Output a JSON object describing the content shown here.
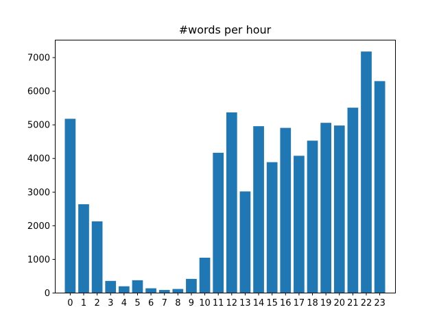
{
  "chart_data": {
    "type": "bar",
    "title": "#words per hour",
    "xlabel": "",
    "ylabel": "",
    "categories": [
      "0",
      "1",
      "2",
      "3",
      "4",
      "5",
      "6",
      "7",
      "8",
      "9",
      "10",
      "11",
      "12",
      "13",
      "14",
      "15",
      "16",
      "17",
      "18",
      "19",
      "20",
      "21",
      "22",
      "23"
    ],
    "values": [
      5170,
      2630,
      2120,
      350,
      190,
      370,
      130,
      80,
      110,
      410,
      1040,
      4160,
      5360,
      3010,
      4950,
      3880,
      4900,
      4070,
      4520,
      5050,
      4970,
      5500,
      7170,
      6290
    ],
    "yticks": [
      0,
      1000,
      2000,
      3000,
      4000,
      5000,
      6000,
      7000
    ],
    "ylim": [
      0,
      7520
    ],
    "xlim": [
      -1.14,
      24.14
    ],
    "bar_color": "#1f77b4",
    "grid": false,
    "legend": "none"
  }
}
